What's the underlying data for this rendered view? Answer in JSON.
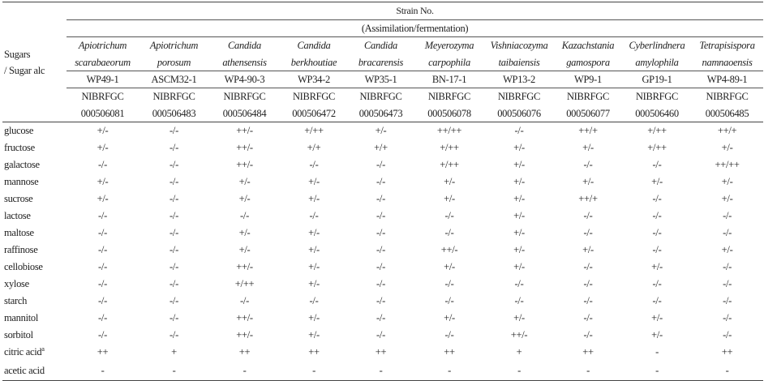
{
  "header": {
    "corner_line1": "Sugars",
    "corner_line2": "/ Sugar alc",
    "strain_title": "Strain No.",
    "assimilation": "(Assimilation/fermentation)"
  },
  "strains": [
    {
      "genus": "Apiotrichum",
      "species": "scarabaeorum",
      "code": "WP49-1",
      "nib1": "NIBRFGC",
      "nib2": "000506081"
    },
    {
      "genus": "Apiotrichum",
      "species": "porosum",
      "code": "ASCM32-1",
      "nib1": "NIBRFGC",
      "nib2": "000506483"
    },
    {
      "genus": "Candida",
      "species": "athensensis",
      "code": "WP4-90-3",
      "nib1": "NIBRFGC",
      "nib2": "000506484"
    },
    {
      "genus": "Candida",
      "species": "berkhoutiae",
      "code": "WP34-2",
      "nib1": "NIBRFGC",
      "nib2": "000506472"
    },
    {
      "genus": "Candida",
      "species": "bracarensis",
      "code": "WP35-1",
      "nib1": "NIBRFGC",
      "nib2": "000506473"
    },
    {
      "genus": "Meyerozyma",
      "species": "carpophila",
      "code": "BN-17-1",
      "nib1": "NIBRFGC",
      "nib2": "000506078"
    },
    {
      "genus": "Vishniacozyma",
      "species": "taibaiensis",
      "code": "WP13-2",
      "nib1": "NIBRFGC",
      "nib2": "000506076"
    },
    {
      "genus": "Kazachstania",
      "species": "gamospora",
      "code": "WP9-1",
      "nib1": "NIBRFGC",
      "nib2": "000506077"
    },
    {
      "genus": "Cyberlindnera",
      "species": "amylophila",
      "code": "GP19-1",
      "nib1": "NIBRFGC",
      "nib2": "000506460"
    },
    {
      "genus": "Tetrapisispora",
      "species": "namnaoensis",
      "code": "WP4-89-1",
      "nib1": "NIBRFGC",
      "nib2": "000506485"
    }
  ],
  "rows": [
    {
      "sugar": "glucose",
      "sup": "",
      "values": [
        "+/-",
        "-/-",
        "++/-",
        "+/++",
        "+/-",
        "++/++",
        "-/-",
        "++/+",
        "+/++",
        "++/+"
      ]
    },
    {
      "sugar": "fructose",
      "sup": "",
      "values": [
        "+/-",
        "-/-",
        "++/-",
        "+/+",
        "+/+",
        "+/++",
        "+/-",
        "+/-",
        "+/++",
        "+/-"
      ]
    },
    {
      "sugar": "galactose",
      "sup": "",
      "values": [
        "-/-",
        "-/-",
        "++/-",
        "-/-",
        "-/-",
        "+/++",
        "+/-",
        "-/-",
        "-/-",
        "++/++"
      ]
    },
    {
      "sugar": "mannose",
      "sup": "",
      "values": [
        "+/-",
        "-/-",
        "+/-",
        "+/-",
        "-/-",
        "+/-",
        "+/-",
        "+/-",
        "+/-",
        "+/-"
      ]
    },
    {
      "sugar": "sucrose",
      "sup": "",
      "values": [
        "+/-",
        "-/-",
        "+/-",
        "+/-",
        "-/-",
        "+/-",
        "+/-",
        "++/+",
        "-/-",
        "+/-"
      ]
    },
    {
      "sugar": "lactose",
      "sup": "",
      "values": [
        "-/-",
        "-/-",
        "-/-",
        "-/-",
        "-/-",
        "-/-",
        "+/-",
        "-/-",
        "-/-",
        "-/-"
      ]
    },
    {
      "sugar": "maltose",
      "sup": "",
      "values": [
        "-/-",
        "-/-",
        "+/-",
        "+/-",
        "-/-",
        "-/-",
        "+/-",
        "-/-",
        "-/-",
        "-/-"
      ]
    },
    {
      "sugar": "raffinose",
      "sup": "",
      "values": [
        "-/-",
        "-/-",
        "+/-",
        "+/-",
        "-/-",
        "++/-",
        "+/-",
        "+/-",
        "-/-",
        "+/-"
      ]
    },
    {
      "sugar": "cellobiose",
      "sup": "",
      "values": [
        "-/-",
        "-/-",
        "++/-",
        "+/-",
        "-/-",
        "+/-",
        "+/-",
        "-/-",
        "+/-",
        "-/-"
      ]
    },
    {
      "sugar": "xylose",
      "sup": "",
      "values": [
        "-/-",
        "-/-",
        "+/++",
        "+/-",
        "-/-",
        "-/-",
        "-/-",
        "-/-",
        "-/-",
        "-/-"
      ]
    },
    {
      "sugar": "starch",
      "sup": "",
      "values": [
        "-/-",
        "-/-",
        "-/-",
        "-/-",
        "-/-",
        "-/-",
        "-/-",
        "-/-",
        "-/-",
        "-/-"
      ]
    },
    {
      "sugar": "mannitol",
      "sup": "",
      "values": [
        "-/-",
        "-/-",
        "++/-",
        "+/-",
        "-/-",
        "+/-",
        "+/-",
        "-/-",
        "+/-",
        "-/-"
      ]
    },
    {
      "sugar": "sorbitol",
      "sup": "",
      "values": [
        "-/-",
        "-/-",
        "++/-",
        "+/-",
        "-/-",
        "-/-",
        "++/-",
        "-/-",
        "+/-",
        "-/-"
      ]
    },
    {
      "sugar": "citric acid",
      "sup": "a",
      "values": [
        "++",
        "+",
        "++",
        "++",
        "++",
        "++",
        "+",
        "++",
        "-",
        "++"
      ]
    },
    {
      "sugar": "acetic acid",
      "sup": "",
      "values": [
        "-",
        "-",
        "-",
        "-",
        "-",
        "-",
        "-",
        "-",
        "-",
        "-"
      ]
    }
  ]
}
